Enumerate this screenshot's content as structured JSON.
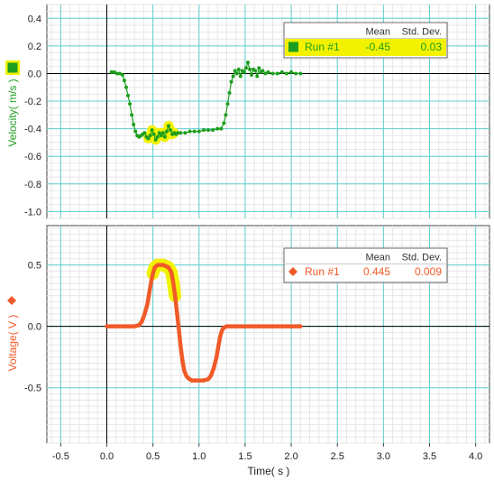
{
  "colors": {
    "velocity": "#1e9e1e",
    "voltage": "#f05a28",
    "highlight": "#f2f200",
    "major_grid": "#5fd0d0",
    "minor_grid": "#e6e6e6"
  },
  "x_axis": {
    "label": "Time( s )",
    "range": [
      -0.65,
      4.15
    ],
    "ticks": [
      -0.5,
      0.0,
      0.5,
      1.0,
      1.5,
      2.0,
      2.5,
      3.0,
      3.5,
      4.0
    ],
    "tick_labels": [
      "-0.5",
      "0.0",
      "0.5",
      "1.0",
      "1.5",
      "2.0",
      "2.5",
      "3.0",
      "3.5",
      "4.0"
    ]
  },
  "chart_data": [
    {
      "type": "scatter",
      "name": "velocity",
      "ylabel": "Velocity( m/s )",
      "ylim": [
        -1.05,
        0.5
      ],
      "yticks": [
        0.4,
        0.2,
        0.0,
        -0.2,
        -0.4,
        -0.6,
        -0.8,
        -1.0
      ],
      "ytick_labels": [
        "0.4",
        "0.2",
        "0.0",
        "-0.2",
        "-0.4",
        "-0.6",
        "-0.8",
        "-1.0"
      ],
      "grid": true,
      "legend": {
        "position": "top-right",
        "headers": [
          "Mean",
          "Std. Dev."
        ],
        "run": "Run #1",
        "mean": "-0.45",
        "std_dev": "0.03",
        "highlighted": true
      },
      "series": [
        {
          "name": "Run #1",
          "x": [
            0.05,
            0.08,
            0.11,
            0.14,
            0.17,
            0.19,
            0.21,
            0.23,
            0.25,
            0.27,
            0.29,
            0.31,
            0.33,
            0.35,
            0.37,
            0.39,
            0.41,
            0.43,
            0.45,
            0.47,
            0.49,
            0.51,
            0.53,
            0.55,
            0.57,
            0.59,
            0.61,
            0.63,
            0.65,
            0.67,
            0.69,
            0.71,
            0.73,
            0.75,
            0.77,
            0.8,
            0.85,
            0.9,
            0.95,
            1.0,
            1.05,
            1.1,
            1.15,
            1.2,
            1.24,
            1.27,
            1.29,
            1.31,
            1.33,
            1.35,
            1.37,
            1.39,
            1.41,
            1.43,
            1.45,
            1.47,
            1.49,
            1.51,
            1.53,
            1.55,
            1.57,
            1.59,
            1.61,
            1.63,
            1.65,
            1.67,
            1.69,
            1.72,
            1.75,
            1.8,
            1.85,
            1.9,
            1.95,
            2.0,
            2.05,
            2.1
          ],
          "y": [
            0.01,
            0.01,
            0.0,
            0.0,
            -0.01,
            -0.05,
            -0.1,
            -0.16,
            -0.22,
            -0.3,
            -0.37,
            -0.42,
            -0.45,
            -0.46,
            -0.45,
            -0.44,
            -0.43,
            -0.46,
            -0.47,
            -0.45,
            -0.41,
            -0.44,
            -0.48,
            -0.46,
            -0.43,
            -0.45,
            -0.43,
            -0.46,
            -0.42,
            -0.38,
            -0.41,
            -0.44,
            -0.43,
            -0.44,
            -0.43,
            -0.43,
            -0.43,
            -0.42,
            -0.42,
            -0.42,
            -0.41,
            -0.41,
            -0.41,
            -0.4,
            -0.4,
            -0.36,
            -0.3,
            -0.22,
            -0.14,
            -0.06,
            -0.02,
            0.02,
            0.0,
            0.03,
            -0.02,
            0.02,
            0.01,
            0.04,
            0.08,
            0.03,
            -0.01,
            0.03,
            0.02,
            -0.02,
            0.04,
            0.01,
            0.02,
            0.0,
            0.01,
            0.0,
            0.0,
            0.01,
            0.0,
            0.01,
            0.0,
            0.0
          ],
          "highlight_x_range": [
            0.44,
            0.73
          ]
        }
      ]
    },
    {
      "type": "line",
      "name": "voltage",
      "ylabel": "Voltage( V )",
      "ylim": [
        -0.95,
        0.82
      ],
      "yticks": [
        0.5,
        0.0,
        -0.5
      ],
      "ytick_labels": [
        "0.5",
        "0.0",
        "-0.5"
      ],
      "grid": true,
      "legend": {
        "position": "top-right",
        "headers": [
          "Mean",
          "Std. Dev."
        ],
        "run": "Run #1",
        "mean": "0.445",
        "std_dev": "0.009",
        "highlighted": false
      },
      "series": [
        {
          "name": "Run #1",
          "x": [
            0.0,
            0.1,
            0.2,
            0.3,
            0.35,
            0.38,
            0.41,
            0.44,
            0.46,
            0.48,
            0.5,
            0.52,
            0.55,
            0.58,
            0.61,
            0.64,
            0.67,
            0.7,
            0.72,
            0.74,
            0.76,
            0.78,
            0.8,
            0.82,
            0.84,
            0.86,
            0.88,
            0.9,
            0.92,
            0.95,
            1.0,
            1.05,
            1.1,
            1.13,
            1.16,
            1.19,
            1.21,
            1.23,
            1.25,
            1.27,
            1.3,
            1.35,
            1.4,
            1.5,
            1.6,
            1.7,
            1.8,
            1.9,
            2.0,
            2.1
          ],
          "y": [
            0.0,
            0.0,
            0.0,
            0.0,
            0.01,
            0.04,
            0.1,
            0.18,
            0.27,
            0.36,
            0.43,
            0.48,
            0.5,
            0.5,
            0.5,
            0.49,
            0.48,
            0.44,
            0.36,
            0.25,
            0.12,
            -0.02,
            -0.16,
            -0.28,
            -0.36,
            -0.4,
            -0.42,
            -0.43,
            -0.44,
            -0.44,
            -0.44,
            -0.44,
            -0.43,
            -0.4,
            -0.34,
            -0.25,
            -0.16,
            -0.08,
            -0.03,
            -0.01,
            0.0,
            0.0,
            0.0,
            0.0,
            0.0,
            0.0,
            0.0,
            0.0,
            0.0,
            0.0
          ],
          "highlight_x_range": [
            0.5,
            0.74
          ]
        }
      ]
    }
  ]
}
